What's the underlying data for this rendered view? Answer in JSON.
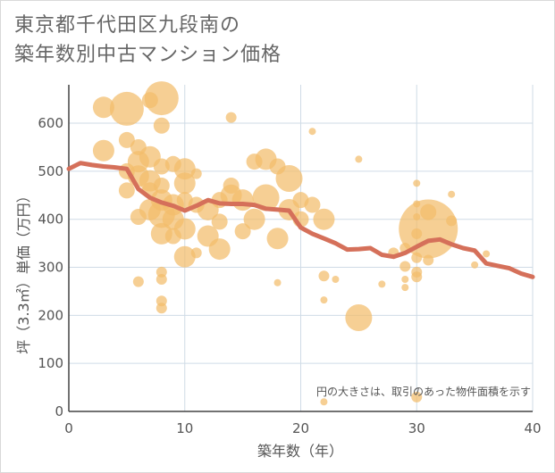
{
  "chart_data": {
    "type": "scatter",
    "title_lines": [
      "東京都千代田区九段南の",
      "築年数別中古マンション価格"
    ],
    "xlabel": "築年数（年）",
    "ylabel": "坪（3.3㎡）単価（万円）",
    "xlim": [
      0,
      40
    ],
    "ylim": [
      0,
      680
    ],
    "x_ticks": [
      0,
      10,
      20,
      30,
      40
    ],
    "y_ticks": [
      0,
      100,
      200,
      300,
      400,
      500,
      600
    ],
    "grid": true,
    "note": "円の大きさは、取引のあった物件面積を示す",
    "colors": {
      "bubble": "#f2bd6b",
      "line": "#d5705a",
      "grid": "#cfdbe6",
      "text": "#555555",
      "title": "#666666"
    },
    "series": [
      {
        "type": "bubble",
        "points": [
          {
            "x": 3,
            "y": 633,
            "s": 3
          },
          {
            "x": 5,
            "y": 630,
            "s": 5
          },
          {
            "x": 7,
            "y": 648,
            "s": 2
          },
          {
            "x": 8,
            "y": 652,
            "s": 5
          },
          {
            "x": 8,
            "y": 595,
            "s": 2
          },
          {
            "x": 14,
            "y": 612,
            "s": 1
          },
          {
            "x": 21,
            "y": 583,
            "s": 0
          },
          {
            "x": 25,
            "y": 525,
            "s": 0
          },
          {
            "x": 3,
            "y": 543,
            "s": 3
          },
          {
            "x": 5,
            "y": 565,
            "s": 2
          },
          {
            "x": 6,
            "y": 550,
            "s": 2
          },
          {
            "x": 6,
            "y": 520,
            "s": 3
          },
          {
            "x": 7,
            "y": 530,
            "s": 3
          },
          {
            "x": 8,
            "y": 510,
            "s": 2
          },
          {
            "x": 5,
            "y": 500,
            "s": 2
          },
          {
            "x": 6,
            "y": 490,
            "s": 3
          },
          {
            "x": 7,
            "y": 480,
            "s": 3
          },
          {
            "x": 5,
            "y": 460,
            "s": 2
          },
          {
            "x": 7,
            "y": 460,
            "s": 2
          },
          {
            "x": 8,
            "y": 470,
            "s": 2
          },
          {
            "x": 9,
            "y": 515,
            "s": 2
          },
          {
            "x": 10,
            "y": 505,
            "s": 3
          },
          {
            "x": 10,
            "y": 475,
            "s": 3
          },
          {
            "x": 11,
            "y": 495,
            "s": 1
          },
          {
            "x": 6,
            "y": 405,
            "s": 2
          },
          {
            "x": 7,
            "y": 420,
            "s": 3
          },
          {
            "x": 8,
            "y": 410,
            "s": 4
          },
          {
            "x": 8,
            "y": 440,
            "s": 3
          },
          {
            "x": 9,
            "y": 430,
            "s": 3
          },
          {
            "x": 9,
            "y": 400,
            "s": 3
          },
          {
            "x": 10,
            "y": 440,
            "s": 2
          },
          {
            "x": 10,
            "y": 380,
            "s": 3
          },
          {
            "x": 8,
            "y": 370,
            "s": 3
          },
          {
            "x": 9,
            "y": 365,
            "s": 2
          },
          {
            "x": 11,
            "y": 430,
            "s": 2
          },
          {
            "x": 12,
            "y": 420,
            "s": 3
          },
          {
            "x": 12,
            "y": 365,
            "s": 3
          },
          {
            "x": 13,
            "y": 395,
            "s": 2
          },
          {
            "x": 13,
            "y": 440,
            "s": 2
          },
          {
            "x": 14,
            "y": 470,
            "s": 2
          },
          {
            "x": 14,
            "y": 450,
            "s": 3
          },
          {
            "x": 15,
            "y": 440,
            "s": 3
          },
          {
            "x": 15,
            "y": 375,
            "s": 2
          },
          {
            "x": 16,
            "y": 520,
            "s": 2
          },
          {
            "x": 17,
            "y": 525,
            "s": 3
          },
          {
            "x": 17,
            "y": 445,
            "s": 4
          },
          {
            "x": 18,
            "y": 510,
            "s": 2
          },
          {
            "x": 19,
            "y": 485,
            "s": 4
          },
          {
            "x": 19,
            "y": 420,
            "s": 3
          },
          {
            "x": 16,
            "y": 400,
            "s": 3
          },
          {
            "x": 18,
            "y": 360,
            "s": 3
          },
          {
            "x": 20,
            "y": 440,
            "s": 2
          },
          {
            "x": 20,
            "y": 400,
            "s": 2
          },
          {
            "x": 21,
            "y": 430,
            "s": 2
          },
          {
            "x": 22,
            "y": 400,
            "s": 3
          },
          {
            "x": 13,
            "y": 338,
            "s": 3
          },
          {
            "x": 10,
            "y": 322,
            "s": 3
          },
          {
            "x": 11,
            "y": 330,
            "s": 1
          },
          {
            "x": 6,
            "y": 270,
            "s": 1
          },
          {
            "x": 8,
            "y": 290,
            "s": 1
          },
          {
            "x": 8,
            "y": 275,
            "s": 1
          },
          {
            "x": 8,
            "y": 230,
            "s": 1
          },
          {
            "x": 8,
            "y": 215,
            "s": 1
          },
          {
            "x": 22,
            "y": 282,
            "s": 1
          },
          {
            "x": 22,
            "y": 232,
            "s": 0
          },
          {
            "x": 23,
            "y": 275,
            "s": 0
          },
          {
            "x": 18,
            "y": 268,
            "s": 0
          },
          {
            "x": 25,
            "y": 195,
            "s": 4
          },
          {
            "x": 22,
            "y": 20,
            "s": 0
          },
          {
            "x": 30,
            "y": 30,
            "s": 1
          },
          {
            "x": 27,
            "y": 265,
            "s": 0
          },
          {
            "x": 29,
            "y": 275,
            "s": 0
          },
          {
            "x": 29,
            "y": 258,
            "s": 0
          },
          {
            "x": 30,
            "y": 475,
            "s": 0
          },
          {
            "x": 30,
            "y": 432,
            "s": 0
          },
          {
            "x": 30,
            "y": 405,
            "s": 0
          },
          {
            "x": 31,
            "y": 380,
            "s": 6
          },
          {
            "x": 31,
            "y": 415,
            "s": 2
          },
          {
            "x": 30,
            "y": 370,
            "s": 1
          },
          {
            "x": 29,
            "y": 340,
            "s": 1
          },
          {
            "x": 30,
            "y": 320,
            "s": 1
          },
          {
            "x": 30,
            "y": 290,
            "s": 1
          },
          {
            "x": 30,
            "y": 280,
            "s": 1
          },
          {
            "x": 31,
            "y": 315,
            "s": 1
          },
          {
            "x": 29,
            "y": 302,
            "s": 1
          },
          {
            "x": 33,
            "y": 452,
            "s": 0
          },
          {
            "x": 33,
            "y": 397,
            "s": 1
          },
          {
            "x": 35,
            "y": 305,
            "s": 0
          },
          {
            "x": 36,
            "y": 328,
            "s": 0
          },
          {
            "x": 28,
            "y": 330,
            "s": 1
          }
        ]
      },
      {
        "type": "line",
        "x": [
          0,
          1,
          2,
          3,
          4,
          5,
          6,
          7,
          8,
          9,
          10,
          11,
          12,
          13,
          14,
          15,
          16,
          17,
          18,
          19,
          20,
          21,
          22,
          23,
          24,
          25,
          26,
          27,
          28,
          29,
          30,
          31,
          32,
          33,
          34,
          35,
          36,
          37,
          38,
          39,
          40
        ],
        "y": [
          505,
          517,
          513,
          510,
          508,
          505,
          463,
          445,
          435,
          428,
          418,
          428,
          440,
          433,
          432,
          432,
          430,
          422,
          420,
          418,
          383,
          370,
          360,
          350,
          337,
          338,
          340,
          326,
          322,
          330,
          343,
          355,
          358,
          348,
          340,
          335,
          308,
          303,
          298,
          287,
          280
        ]
      }
    ]
  }
}
